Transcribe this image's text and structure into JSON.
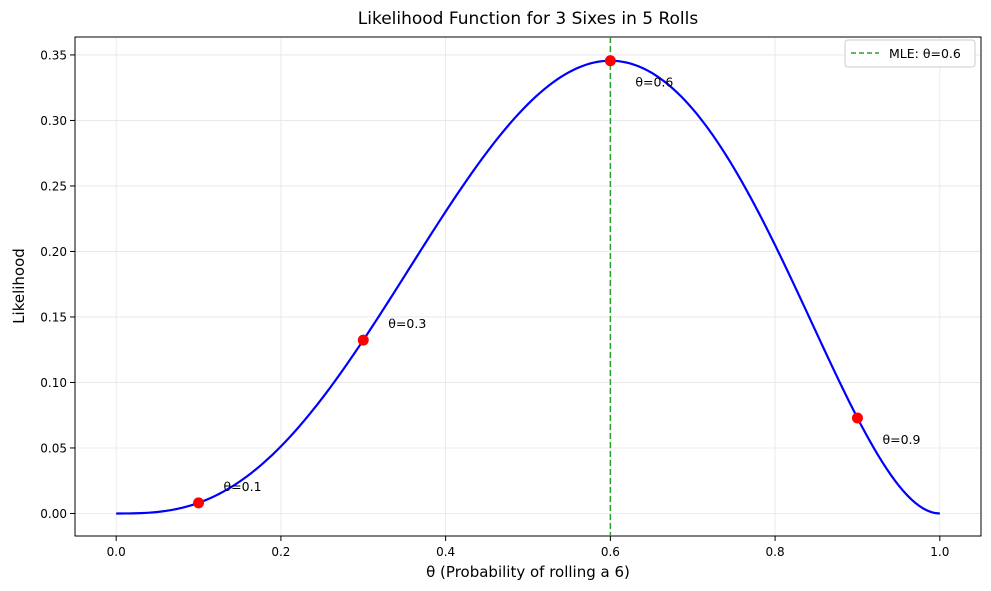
{
  "chart_data": {
    "type": "line",
    "title": "Likelihood Function for 3 Sixes in 5 Rolls",
    "xlabel": "θ (Probability of rolling a 6)",
    "ylabel": "Likelihood",
    "xlim": [
      -0.05,
      1.05
    ],
    "ylim": [
      -0.0172,
      0.3637
    ],
    "xticks": [
      0.0,
      0.2,
      0.4,
      0.6,
      0.8,
      1.0
    ],
    "xtick_labels": [
      "0.0",
      "0.2",
      "0.4",
      "0.6",
      "0.8",
      "1.0"
    ],
    "yticks": [
      0.0,
      0.05,
      0.1,
      0.15,
      0.2,
      0.25,
      0.3,
      0.35
    ],
    "ytick_labels": [
      "0.00",
      "0.05",
      "0.10",
      "0.15",
      "0.20",
      "0.25",
      "0.30",
      "0.35"
    ],
    "grid": true,
    "legend_position": "top-right",
    "series": [
      {
        "kind": "curve",
        "function": "10·θ^3·(1−θ)^2",
        "x_range": [
          0,
          1
        ],
        "color": "#0000ff"
      },
      {
        "kind": "vline",
        "name": "MLE: θ=0.6",
        "x": 0.6,
        "color": "#2ca02c",
        "style": "dashed"
      }
    ],
    "points": [
      {
        "x": 0.1,
        "y": 0.0081,
        "label": "θ=0.1"
      },
      {
        "x": 0.3,
        "y": 0.1323,
        "label": "θ=0.3"
      },
      {
        "x": 0.6,
        "y": 0.3456,
        "label": "θ=0.6"
      },
      {
        "x": 0.9,
        "y": 0.0729,
        "label": "θ=0.9"
      }
    ],
    "point_color": "#ff0000"
  }
}
